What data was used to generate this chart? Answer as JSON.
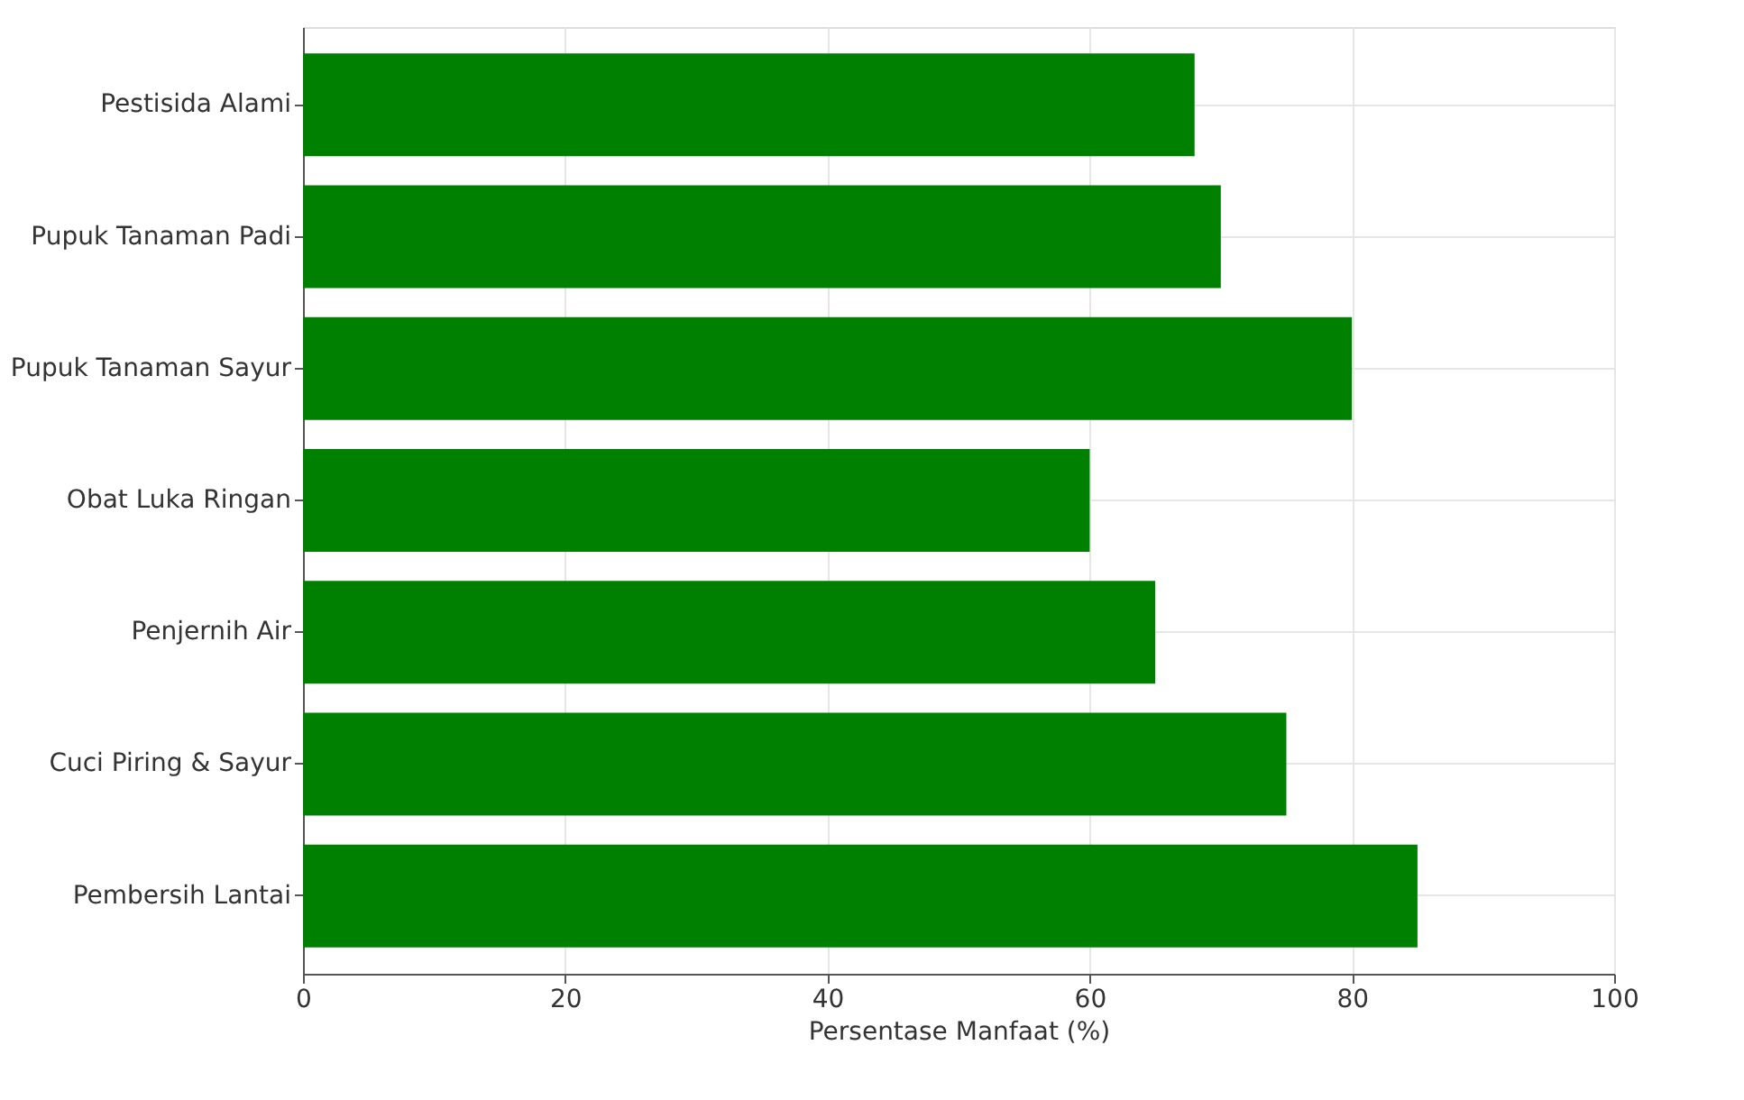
{
  "chart_data": {
    "type": "bar",
    "orientation": "horizontal",
    "xlabel": "Persentase Manfaat (%)",
    "categories": [
      "Pestisida Alami",
      "Pupuk Tanaman Padi",
      "Pupuk Tanaman Sayur",
      "Obat Luka Ringan",
      "Penjernih Air",
      "Cuci Piring & Sayur",
      "Pembersih Lantai"
    ],
    "values": [
      68,
      70,
      80,
      60,
      65,
      75,
      85
    ],
    "color": "#008000",
    "xlim": [
      0,
      100
    ],
    "xticks": [
      0,
      20,
      40,
      60,
      80,
      100
    ],
    "grid": true
  }
}
